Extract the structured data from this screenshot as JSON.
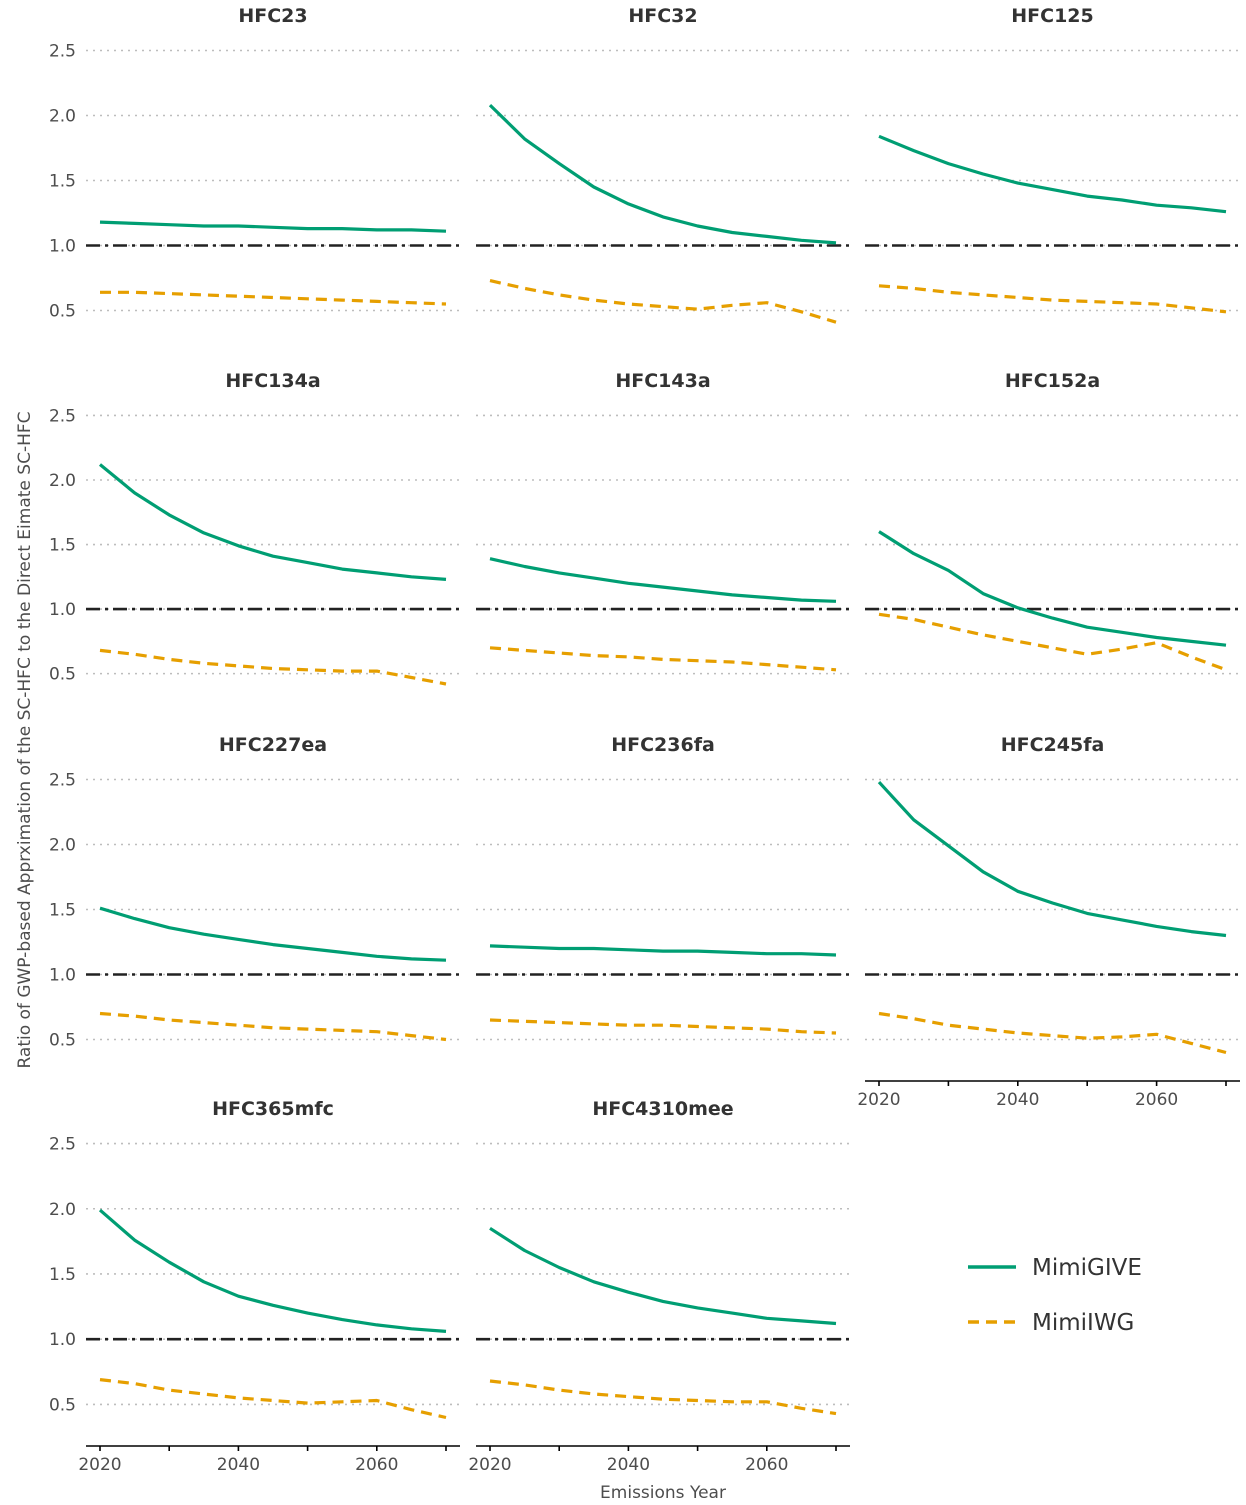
{
  "chart_data": {
    "type": "line",
    "layout": "facet-grid",
    "xlabel": "Emissions Year",
    "ylabel": "Ratio of GWP-based Apprximation of the SC-HFC to the Direct Eimate SC-HFC",
    "xlim": [
      2020,
      2070
    ],
    "ylim": [
      0.35,
      2.55
    ],
    "xticks": [
      2020,
      2040,
      2060
    ],
    "yticks": [
      0.5,
      1.0,
      1.5,
      2.0,
      2.5
    ],
    "ytick_labels": [
      "0.5",
      "1.0",
      "1.5",
      "2.0",
      "2.5"
    ],
    "grid": "horizontal dotted",
    "reference_line": 1.0,
    "legend": {
      "position": "bottom-right",
      "entries": [
        {
          "name": "MimiGIVE",
          "color": "#009E73",
          "style": "solid"
        },
        {
          "name": "MimiIWG",
          "color": "#E69F00",
          "style": "dashed"
        }
      ]
    },
    "x": [
      2020,
      2025,
      2030,
      2035,
      2040,
      2045,
      2050,
      2055,
      2060,
      2065,
      2070
    ],
    "panels": [
      {
        "title": "HFC23",
        "series": [
          {
            "name": "MimiGIVE",
            "values": [
              1.18,
              1.17,
              1.16,
              1.15,
              1.15,
              1.14,
              1.13,
              1.13,
              1.12,
              1.12,
              1.11
            ]
          },
          {
            "name": "MimiIWG",
            "values": [
              0.64,
              0.64,
              0.63,
              0.62,
              0.61,
              0.6,
              0.59,
              0.58,
              0.57,
              0.56,
              0.55
            ]
          }
        ]
      },
      {
        "title": "HFC32",
        "series": [
          {
            "name": "MimiGIVE",
            "values": [
              2.08,
              1.82,
              1.63,
              1.45,
              1.32,
              1.22,
              1.15,
              1.1,
              1.07,
              1.04,
              1.02
            ]
          },
          {
            "name": "MimiIWG",
            "values": [
              0.73,
              0.67,
              0.62,
              0.58,
              0.55,
              0.53,
              0.51,
              0.54,
              0.56,
              0.49,
              0.41
            ]
          }
        ]
      },
      {
        "title": "HFC125",
        "series": [
          {
            "name": "MimiGIVE",
            "values": [
              1.84,
              1.73,
              1.63,
              1.55,
              1.48,
              1.43,
              1.38,
              1.35,
              1.31,
              1.29,
              1.26
            ]
          },
          {
            "name": "MimiIWG",
            "values": [
              0.69,
              0.67,
              0.64,
              0.62,
              0.6,
              0.58,
              0.57,
              0.56,
              0.55,
              0.52,
              0.49
            ]
          }
        ]
      },
      {
        "title": "HFC134a",
        "series": [
          {
            "name": "MimiGIVE",
            "values": [
              2.12,
              1.9,
              1.73,
              1.59,
              1.49,
              1.41,
              1.36,
              1.31,
              1.28,
              1.25,
              1.23
            ]
          },
          {
            "name": "MimiIWG",
            "values": [
              0.68,
              0.65,
              0.61,
              0.58,
              0.56,
              0.54,
              0.53,
              0.52,
              0.52,
              0.47,
              0.42
            ]
          }
        ]
      },
      {
        "title": "HFC143a",
        "series": [
          {
            "name": "MimiGIVE",
            "values": [
              1.39,
              1.33,
              1.28,
              1.24,
              1.2,
              1.17,
              1.14,
              1.11,
              1.09,
              1.07,
              1.06
            ]
          },
          {
            "name": "MimiIWG",
            "values": [
              0.7,
              0.68,
              0.66,
              0.64,
              0.63,
              0.61,
              0.6,
              0.59,
              0.57,
              0.55,
              0.53
            ]
          }
        ]
      },
      {
        "title": "HFC152a",
        "series": [
          {
            "name": "MimiGIVE",
            "values": [
              1.6,
              1.43,
              1.3,
              1.12,
              1.01,
              0.93,
              0.86,
              0.82,
              0.78,
              0.75,
              0.72
            ]
          },
          {
            "name": "MimiIWG",
            "values": [
              0.96,
              0.92,
              0.86,
              0.8,
              0.75,
              0.7,
              0.65,
              0.69,
              0.74,
              0.63,
              0.53
            ]
          }
        ]
      },
      {
        "title": "HFC227ea",
        "series": [
          {
            "name": "MimiGIVE",
            "values": [
              1.51,
              1.43,
              1.36,
              1.31,
              1.27,
              1.23,
              1.2,
              1.17,
              1.14,
              1.12,
              1.11
            ]
          },
          {
            "name": "MimiIWG",
            "values": [
              0.7,
              0.68,
              0.65,
              0.63,
              0.61,
              0.59,
              0.58,
              0.57,
              0.56,
              0.53,
              0.5
            ]
          }
        ]
      },
      {
        "title": "HFC236fa",
        "series": [
          {
            "name": "MimiGIVE",
            "values": [
              1.22,
              1.21,
              1.2,
              1.2,
              1.19,
              1.18,
              1.18,
              1.17,
              1.16,
              1.16,
              1.15
            ]
          },
          {
            "name": "MimiIWG",
            "values": [
              0.65,
              0.64,
              0.63,
              0.62,
              0.61,
              0.61,
              0.6,
              0.59,
              0.58,
              0.56,
              0.55
            ]
          }
        ]
      },
      {
        "title": "HFC245fa",
        "series": [
          {
            "name": "MimiGIVE",
            "values": [
              2.48,
              2.19,
              1.99,
              1.79,
              1.64,
              1.55,
              1.47,
              1.42,
              1.37,
              1.33,
              1.3
            ]
          },
          {
            "name": "MimiIWG",
            "values": [
              0.7,
              0.66,
              0.61,
              0.58,
              0.55,
              0.53,
              0.51,
              0.52,
              0.54,
              0.47,
              0.4
            ]
          }
        ]
      },
      {
        "title": "HFC365mfc",
        "series": [
          {
            "name": "MimiGIVE",
            "values": [
              1.99,
              1.76,
              1.59,
              1.44,
              1.33,
              1.26,
              1.2,
              1.15,
              1.11,
              1.08,
              1.06
            ]
          },
          {
            "name": "MimiIWG",
            "values": [
              0.69,
              0.66,
              0.61,
              0.58,
              0.55,
              0.53,
              0.51,
              0.52,
              0.53,
              0.46,
              0.4
            ]
          }
        ]
      },
      {
        "title": "HFC4310mee",
        "series": [
          {
            "name": "MimiGIVE",
            "values": [
              1.85,
              1.68,
              1.55,
              1.44,
              1.36,
              1.29,
              1.24,
              1.2,
              1.16,
              1.14,
              1.12
            ]
          },
          {
            "name": "MimiIWG",
            "values": [
              0.68,
              0.65,
              0.61,
              0.58,
              0.56,
              0.54,
              0.53,
              0.52,
              0.52,
              0.47,
              0.43
            ]
          }
        ]
      }
    ]
  }
}
